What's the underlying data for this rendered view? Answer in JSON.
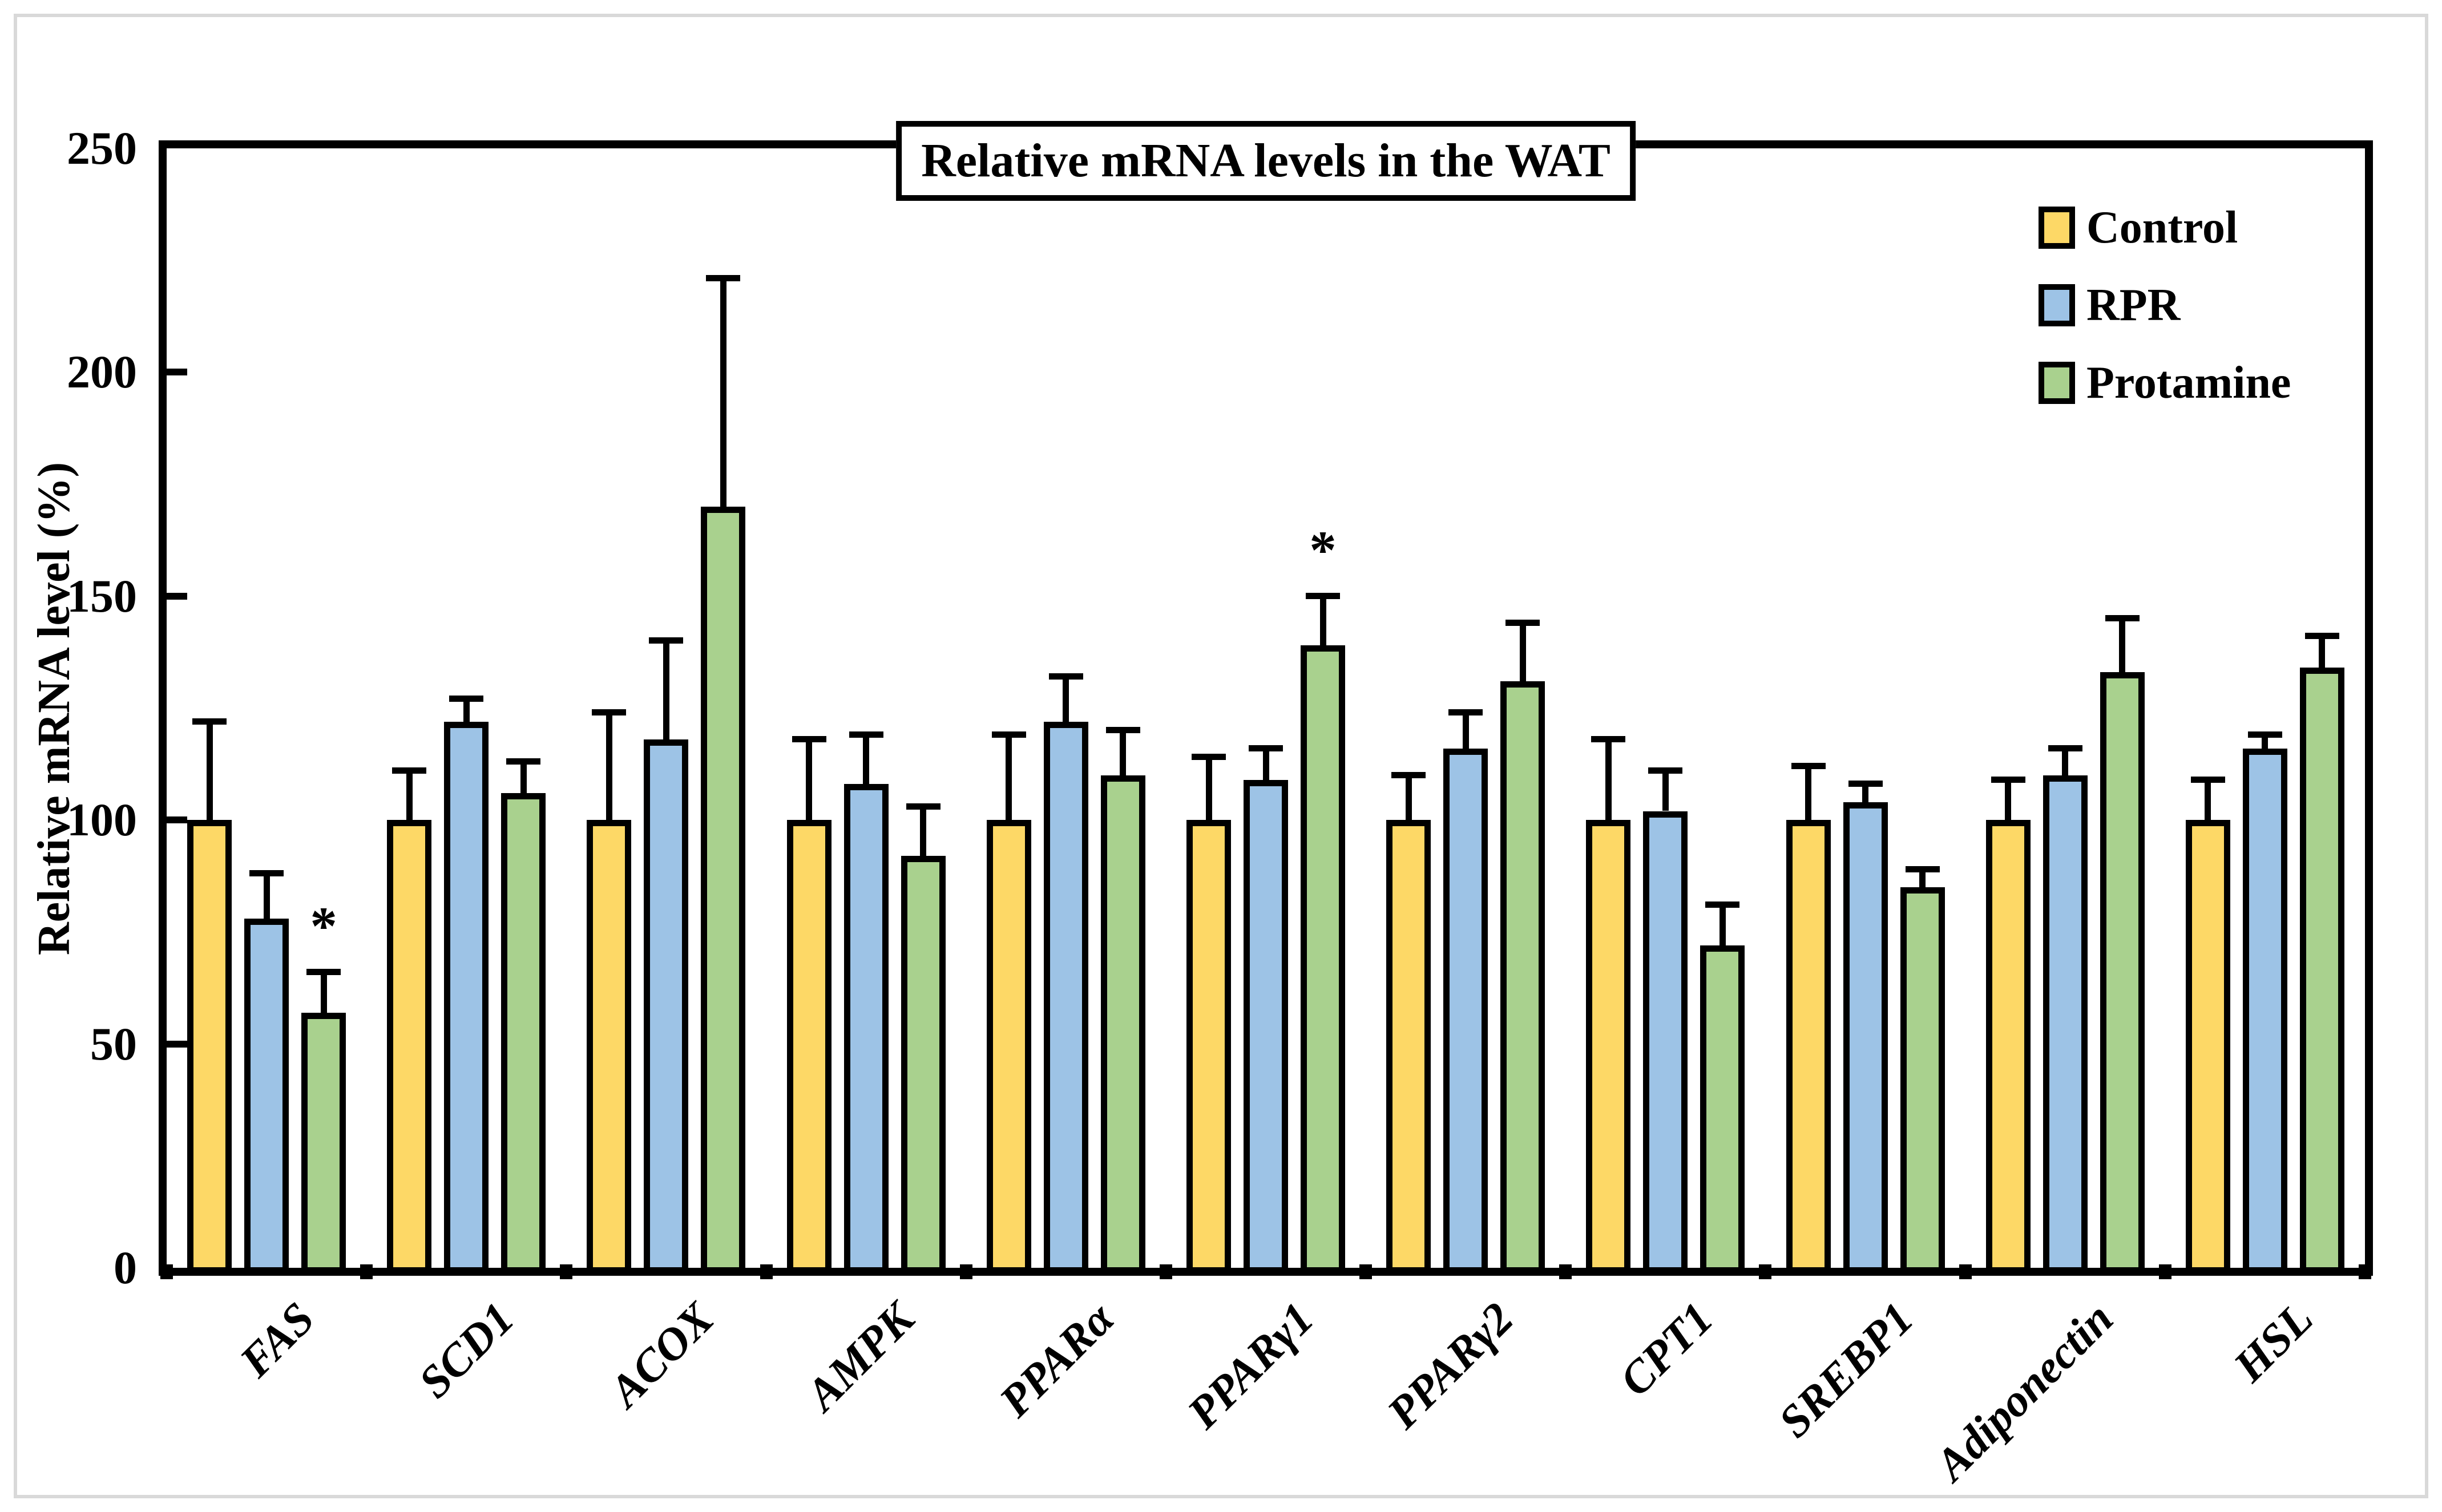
{
  "figure": {
    "outer_border_color": "#d9d9d9",
    "background": "#ffffff"
  },
  "chart_data": {
    "type": "bar",
    "title": "Relative mRNA levels in the WAT",
    "ylabel": "Relative mRNA level (%)",
    "ylim": [
      0,
      250
    ],
    "yticks": [
      0,
      50,
      100,
      150,
      200,
      250
    ],
    "grid": false,
    "legend_position": "inside-top-right",
    "bar_border_color": "#000000",
    "categories": [
      "FAS",
      "SCD1",
      "ACOX",
      "AMPK",
      "PPARα",
      "PPARγ1",
      "PPARγ2",
      "CPT1",
      "SREBP1",
      "Adiponectin",
      "HSL"
    ],
    "series": [
      {
        "name": "Control",
        "color": "#FDD866",
        "values": [
          100,
          100,
          100,
          100,
          100,
          100,
          100,
          100,
          100,
          100,
          100
        ],
        "errors": [
          22,
          11,
          24,
          18,
          19,
          14,
          10,
          18,
          12,
          9,
          9
        ]
      },
      {
        "name": "RPR",
        "color": "#9DC3E6",
        "values": [
          78,
          122,
          118,
          108,
          122,
          109,
          116,
          102,
          104,
          110,
          116
        ],
        "errors": [
          10,
          5,
          22,
          11,
          10,
          7,
          8,
          9,
          4,
          6,
          3
        ]
      },
      {
        "name": "Protamine",
        "color": "#A9D18E",
        "values": [
          57,
          106,
          170,
          92,
          110,
          139,
          131,
          72,
          85,
          133,
          134
        ],
        "errors": [
          9,
          7,
          51,
          11,
          10,
          11,
          13,
          9,
          4,
          12,
          7
        ]
      }
    ],
    "annotations": [
      {
        "category": "FAS",
        "series": "Protamine",
        "text": "*"
      },
      {
        "category": "PPARγ1",
        "series": "Protamine",
        "text": "*"
      }
    ]
  }
}
